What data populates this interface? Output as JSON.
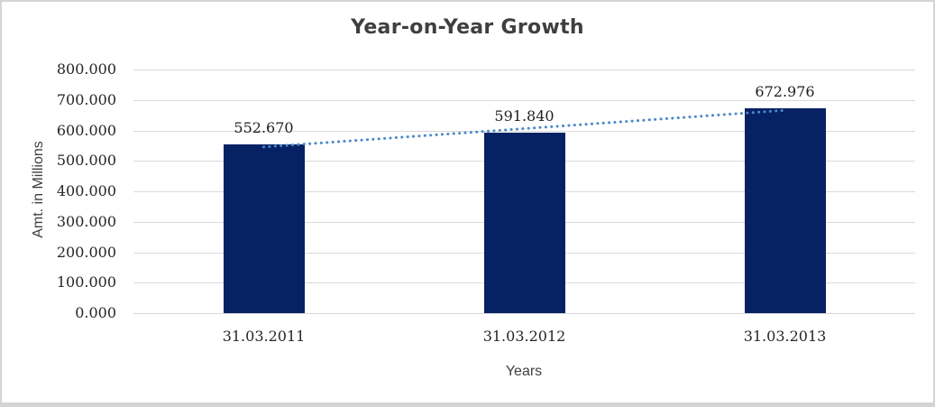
{
  "chart_data": {
    "type": "bar",
    "title": "Year-on-Year Growth",
    "xlabel": "Years",
    "ylabel": "Amt. in Millions",
    "categories": [
      "31.03.2011",
      "31.03.2012",
      "31.03.2013"
    ],
    "values": [
      552.67,
      591.84,
      672.976
    ],
    "data_labels": [
      "552.670",
      "591.840",
      "672.976"
    ],
    "ylim": [
      0,
      800
    ],
    "ytick_step": 100,
    "ytick_labels": [
      "0.000",
      "100.000",
      "200.000",
      "300.000",
      "400.000",
      "500.000",
      "600.000",
      "700.000",
      "800.000"
    ],
    "grid": true,
    "legend": "none",
    "colors": {
      "bar": "#062264",
      "trendline": "#4a89c8",
      "gridline": "#d9d9d9",
      "title_text": "#3f3f3f",
      "tick_text": "#262626",
      "frame_border": "#d4d4d4"
    },
    "trendline": {
      "type": "linear",
      "style": "dotted"
    }
  }
}
